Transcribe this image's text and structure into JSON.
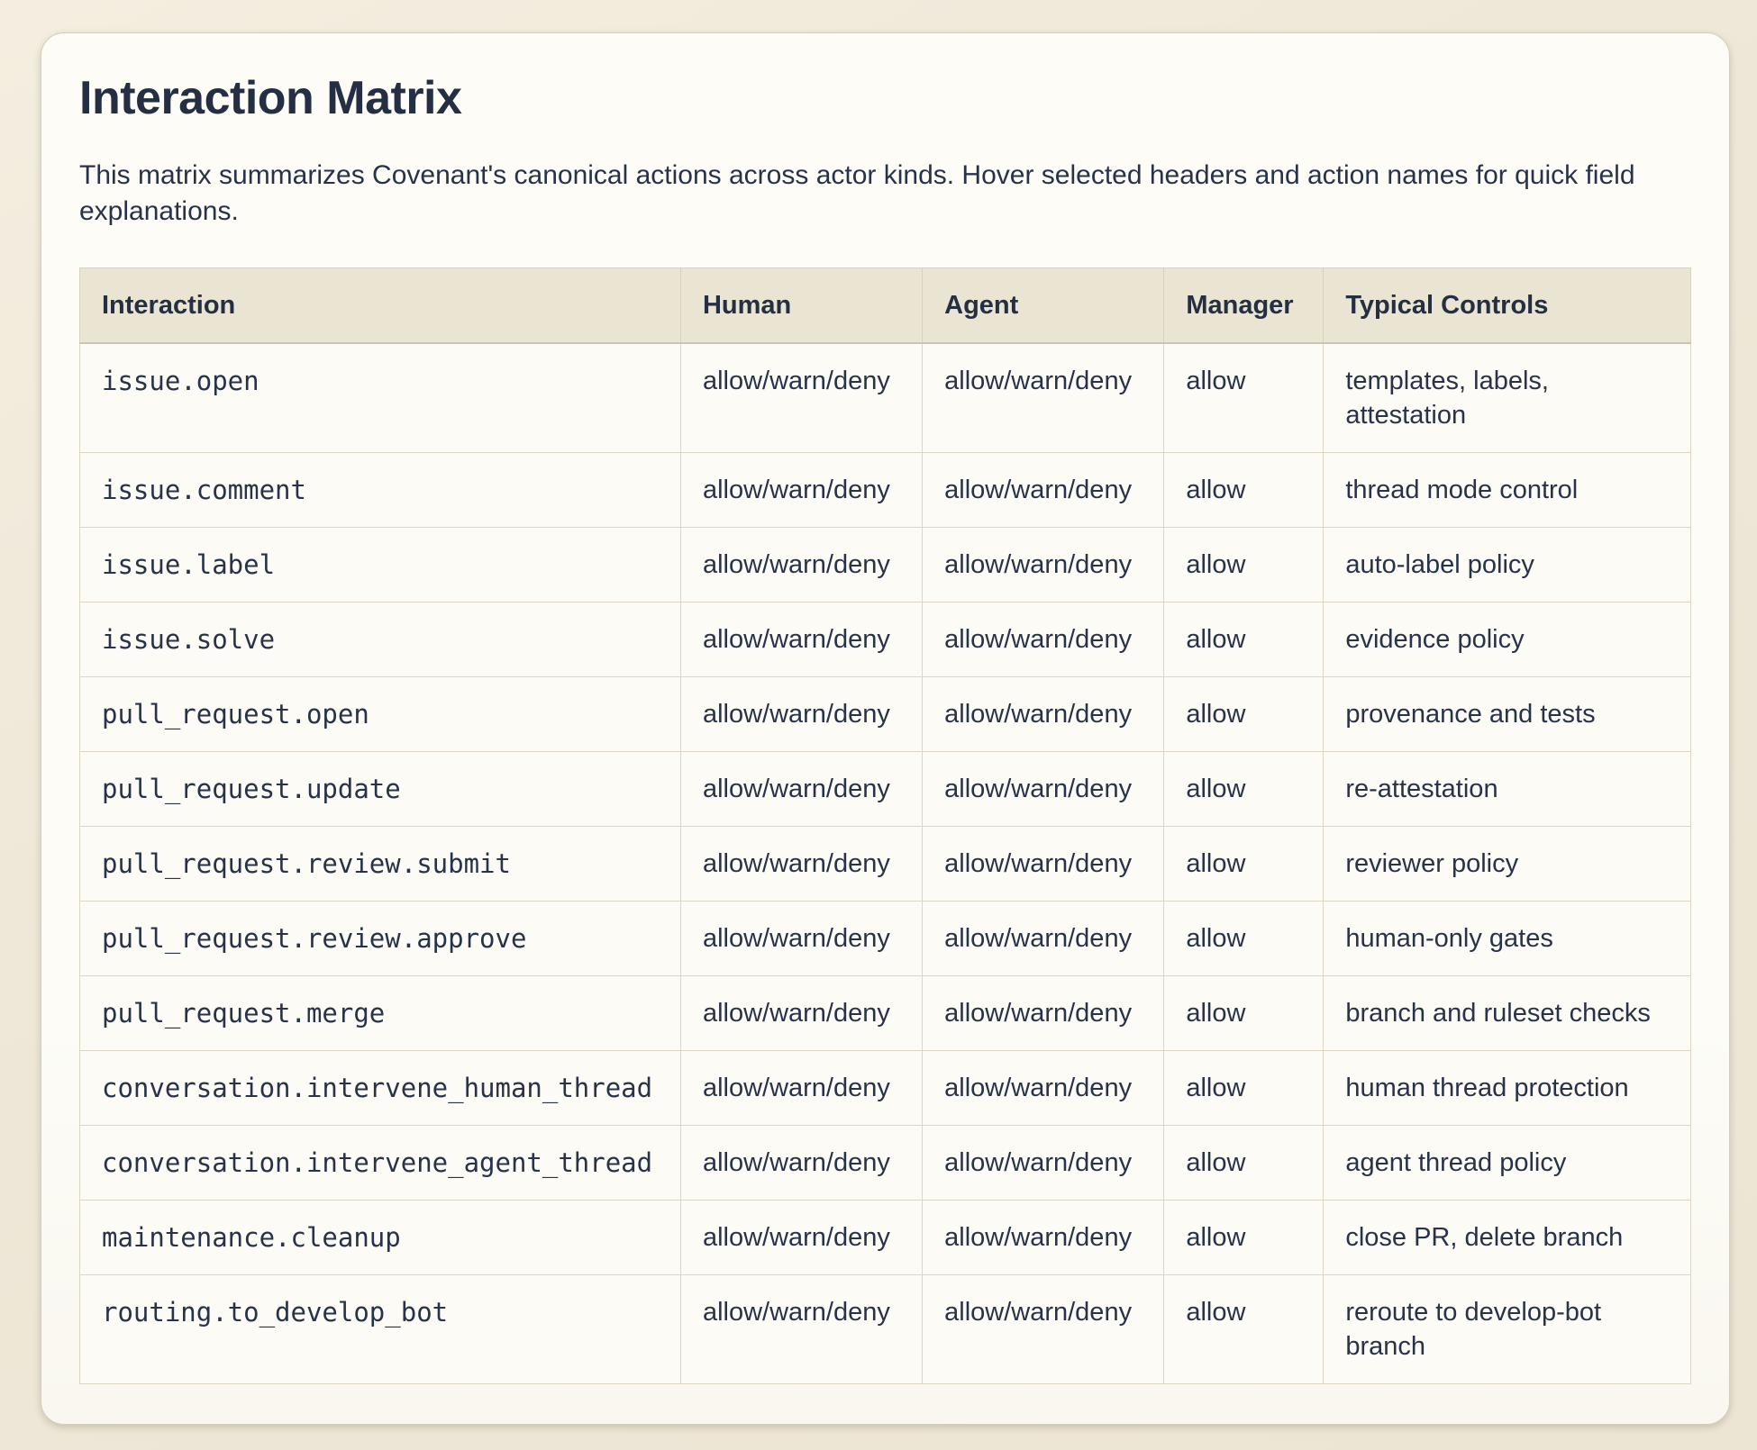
{
  "colors": {
    "page_background": "#ece5d4",
    "card_background": "#fdfcf7",
    "header_row_background": "#eae4d2",
    "table_border": "#ddd6c5",
    "text_primary": "#28334a"
  },
  "card": {
    "title": "Interaction Matrix",
    "subtitle": "This matrix summarizes Covenant's canonical actions across actor kinds. Hover selected headers and action names for quick field explanations."
  },
  "table": {
    "columns": [
      {
        "key": "interaction",
        "label": "Interaction"
      },
      {
        "key": "human",
        "label": "Human"
      },
      {
        "key": "agent",
        "label": "Agent"
      },
      {
        "key": "manager",
        "label": "Manager"
      },
      {
        "key": "controls",
        "label": "Typical Controls"
      }
    ],
    "rows": [
      {
        "interaction": "issue.open",
        "human": "allow/warn/deny",
        "agent": "allow/warn/deny",
        "manager": "allow",
        "controls": "templates, labels, attestation"
      },
      {
        "interaction": "issue.comment",
        "human": "allow/warn/deny",
        "agent": "allow/warn/deny",
        "manager": "allow",
        "controls": "thread mode control"
      },
      {
        "interaction": "issue.label",
        "human": "allow/warn/deny",
        "agent": "allow/warn/deny",
        "manager": "allow",
        "controls": "auto-label policy"
      },
      {
        "interaction": "issue.solve",
        "human": "allow/warn/deny",
        "agent": "allow/warn/deny",
        "manager": "allow",
        "controls": "evidence policy"
      },
      {
        "interaction": "pull_request.open",
        "human": "allow/warn/deny",
        "agent": "allow/warn/deny",
        "manager": "allow",
        "controls": "provenance and tests"
      },
      {
        "interaction": "pull_request.update",
        "human": "allow/warn/deny",
        "agent": "allow/warn/deny",
        "manager": "allow",
        "controls": "re-attestation"
      },
      {
        "interaction": "pull_request.review.submit",
        "human": "allow/warn/deny",
        "agent": "allow/warn/deny",
        "manager": "allow",
        "controls": "reviewer policy"
      },
      {
        "interaction": "pull_request.review.approve",
        "human": "allow/warn/deny",
        "agent": "allow/warn/deny",
        "manager": "allow",
        "controls": "human-only gates"
      },
      {
        "interaction": "pull_request.merge",
        "human": "allow/warn/deny",
        "agent": "allow/warn/deny",
        "manager": "allow",
        "controls": "branch and ruleset checks"
      },
      {
        "interaction": "conversation.intervene_human_thread",
        "human": "allow/warn/deny",
        "agent": "allow/warn/deny",
        "manager": "allow",
        "controls": "human thread protection"
      },
      {
        "interaction": "conversation.intervene_agent_thread",
        "human": "allow/warn/deny",
        "agent": "allow/warn/deny",
        "manager": "allow",
        "controls": "agent thread policy"
      },
      {
        "interaction": "maintenance.cleanup",
        "human": "allow/warn/deny",
        "agent": "allow/warn/deny",
        "manager": "allow",
        "controls": "close PR, delete branch"
      },
      {
        "interaction": "routing.to_develop_bot",
        "human": "allow/warn/deny",
        "agent": "allow/warn/deny",
        "manager": "allow",
        "controls": "reroute to develop-bot branch"
      }
    ]
  }
}
